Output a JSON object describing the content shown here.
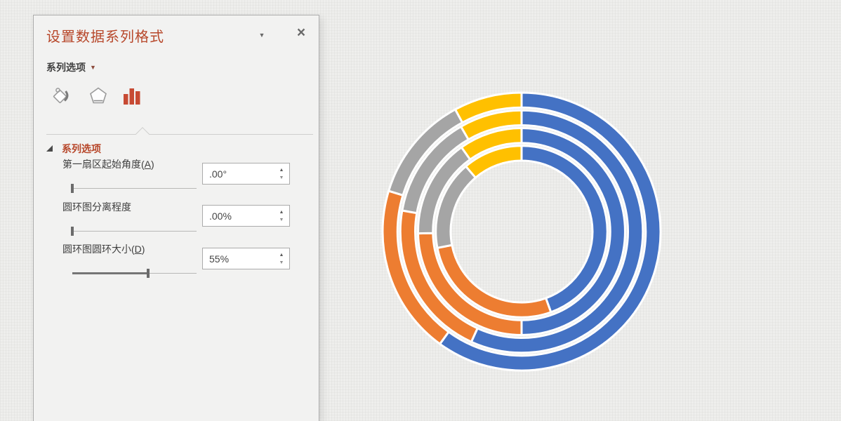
{
  "panel": {
    "title": "设置数据系列格式",
    "menu_caret_glyph": "▼",
    "close_glyph": "×",
    "options_dropdown": {
      "label": "系列选项",
      "caret_glyph": "▼"
    },
    "tabs": [
      {
        "name": "fill-and-line",
        "icon": "paint-bucket-icon",
        "active": false
      },
      {
        "name": "effects",
        "icon": "pentagon-icon",
        "active": false
      },
      {
        "name": "series-options",
        "icon": "bar-chart-icon",
        "active": true,
        "accent": "#C74A33"
      }
    ],
    "section": {
      "title": "系列选项"
    },
    "spinner": {
      "up_glyph": "▲",
      "down_glyph": "▼"
    },
    "controls": [
      {
        "label_pre": "第一扇区起始角度(",
        "access_key": "A",
        "label_post": ")",
        "value": ".00°",
        "slider_percent": 0
      },
      {
        "label_pre": "圆环图分离程度",
        "access_key": "",
        "label_post": "",
        "value": ".00%",
        "slider_percent": 0
      },
      {
        "label_pre": "圆环图圆环大小(",
        "access_key": "D",
        "label_post": ")",
        "value": "55%",
        "slider_percent": 61
      }
    ],
    "colors": {
      "title_red": "#B7472A",
      "panel_bg": "#f2f2f1"
    }
  },
  "chart_data": {
    "type": "doughnut",
    "title": "",
    "rings_order": "inner-to-outer",
    "direction": "clockwise",
    "start_angle_deg": 0,
    "hole_radius_ratio": 0.495,
    "categories": [
      "blue-segment",
      "orange-segment",
      "gray-segment",
      "yellow-segment"
    ],
    "colors": [
      "#4472C4",
      "#ED7D31",
      "#A5A5A5",
      "#FFC000"
    ],
    "series": [
      {
        "name": "ring-1-innermost",
        "segment_start_deg": [
          0,
          160,
          259,
          319.5
        ],
        "percents": [
          44.4,
          27.5,
          16.8,
          11.3
        ]
      },
      {
        "name": "ring-2",
        "segment_start_deg": [
          0,
          180,
          269,
          324.5
        ],
        "percents": [
          50.0,
          24.7,
          15.4,
          9.9
        ]
      },
      {
        "name": "ring-3",
        "segment_start_deg": [
          0,
          204.5,
          280,
          330
        ],
        "percents": [
          56.8,
          21.0,
          13.9,
          8.3
        ]
      },
      {
        "name": "ring-4-outermost",
        "segment_start_deg": [
          0,
          216,
          287,
          331.5
        ],
        "percents": [
          60.0,
          19.7,
          12.4,
          7.9
        ]
      }
    ],
    "segment_border_color": "#ffffff",
    "background": "slide-canvas-texture"
  }
}
